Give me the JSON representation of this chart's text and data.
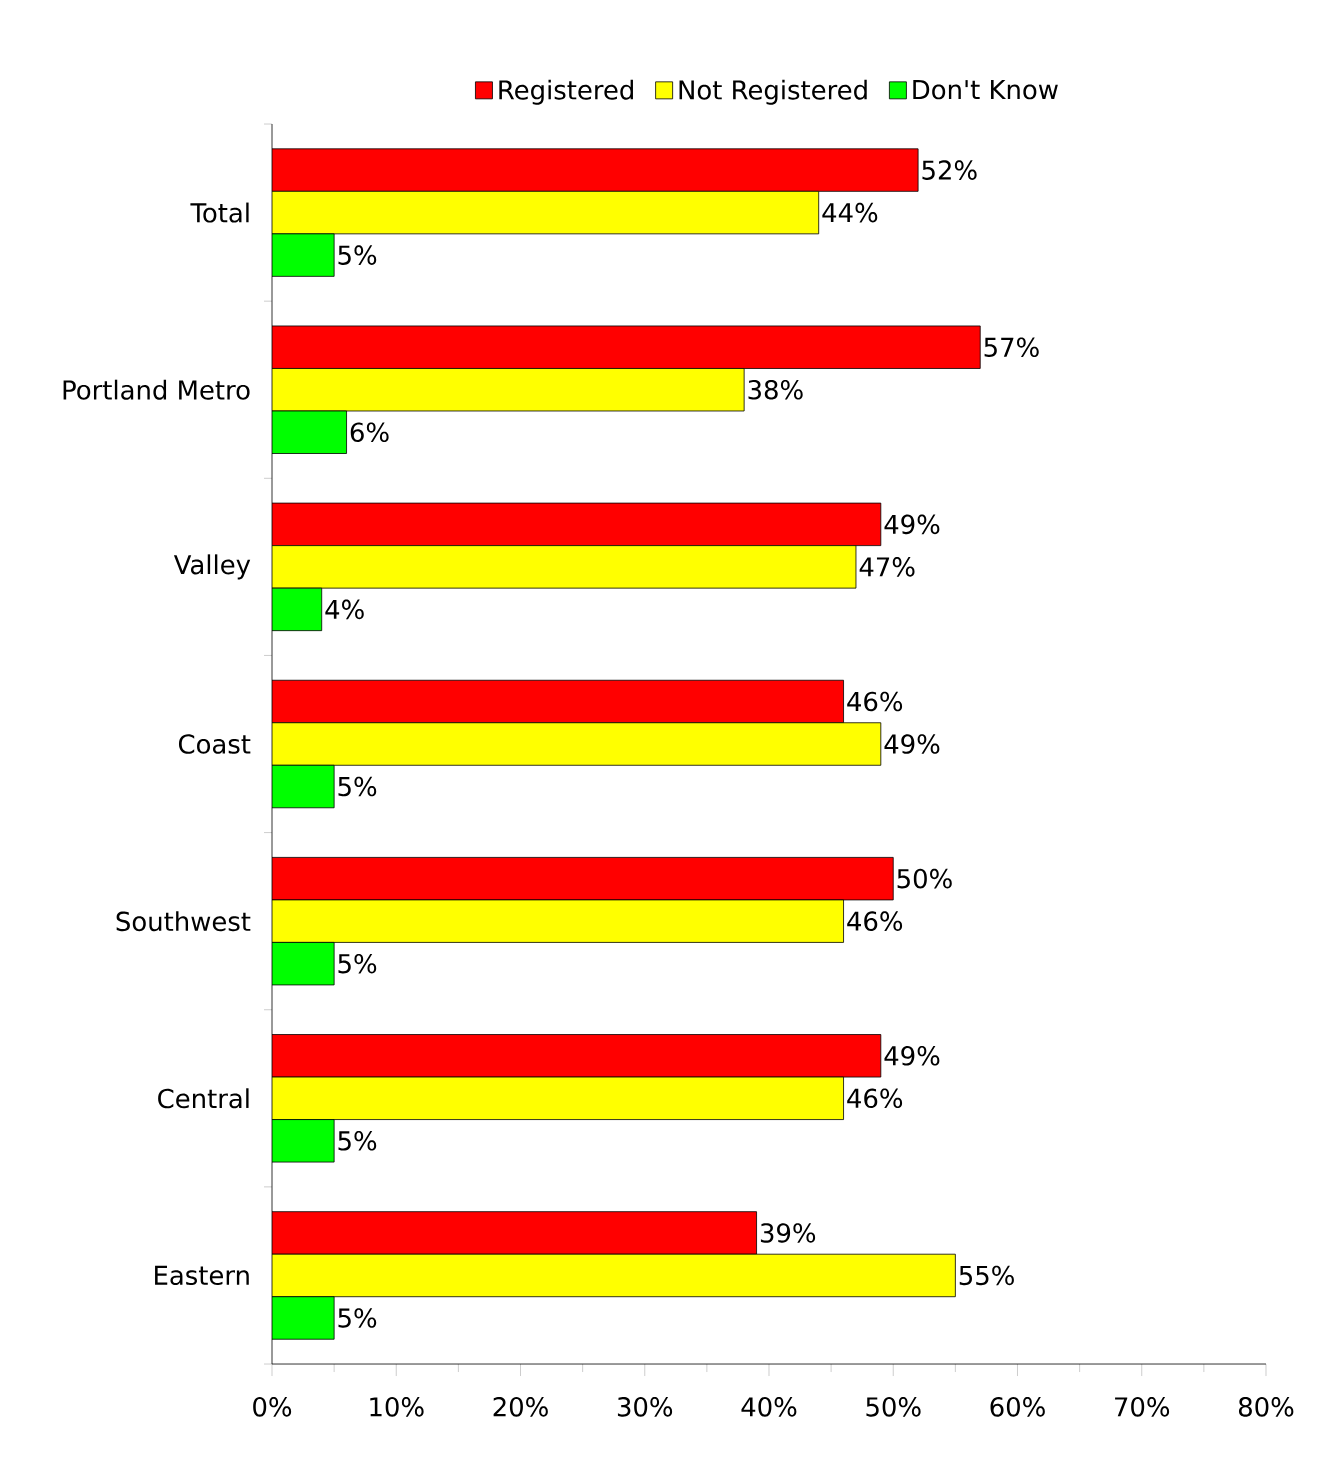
{
  "chart_data": {
    "type": "bar",
    "orientation": "horizontal",
    "legend": "top",
    "categories": [
      "Total",
      "Portland Metro",
      "Valley",
      "Coast",
      "Southwest",
      "Central",
      "Eastern"
    ],
    "series": [
      {
        "name": "Registered",
        "color": "#ff0000",
        "values": [
          52,
          57,
          49,
          46,
          50,
          49,
          39
        ],
        "value_labels": [
          "52%",
          "57%",
          "49%",
          "46%",
          "50%",
          "49%",
          "39%"
        ]
      },
      {
        "name": "Not Registered",
        "color": "#ffff00",
        "values": [
          44,
          38,
          47,
          49,
          46,
          46,
          55
        ],
        "value_labels": [
          "44%",
          "38%",
          "47%",
          "49%",
          "46%",
          "46%",
          "55%"
        ]
      },
      {
        "name": "Don't Know",
        "color": "#00ff00",
        "values": [
          5,
          6,
          4,
          5,
          5,
          5,
          5
        ],
        "value_labels": [
          "5%",
          "6%",
          "4%",
          "5%",
          "5%",
          "5%",
          "5%"
        ]
      }
    ],
    "xlim": [
      0,
      80
    ],
    "xticks": [
      {
        "value": 0,
        "label": "0%"
      },
      {
        "value": 10,
        "label": "10%"
      },
      {
        "value": 20,
        "label": "20%"
      },
      {
        "value": 30,
        "label": "30%"
      },
      {
        "value": 40,
        "label": "40%"
      },
      {
        "value": 50,
        "label": "50%"
      },
      {
        "value": 60,
        "label": "60%"
      },
      {
        "value": 70,
        "label": "70%"
      },
      {
        "value": 80,
        "label": "80%"
      }
    ]
  }
}
